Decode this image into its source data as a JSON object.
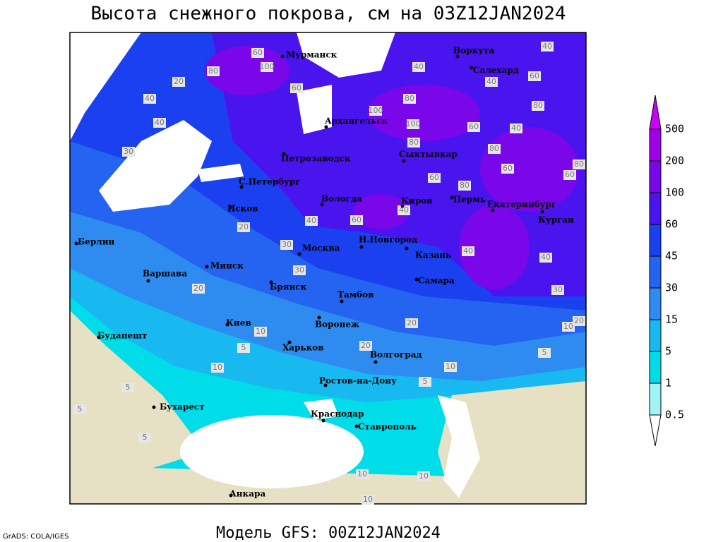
{
  "title": "Высота снежного покрова, см на 03Z12JAN2024",
  "footer": "Модель GFS: 00Z12JAN2024",
  "credit": "GrADS: COLA/IGES",
  "colorbar": {
    "levels": [
      0.5,
      1,
      5,
      15,
      30,
      45,
      60,
      100,
      200,
      500
    ],
    "colors": [
      "#ffffff",
      "#a0f4f8",
      "#00dce8",
      "#18b8f0",
      "#2e8cf0",
      "#2464f0",
      "#1a40f0",
      "#4a14ee",
      "#7a06ea",
      "#a000e6",
      "#cc00ff"
    ],
    "land_color": "#e6e0c4"
  },
  "cities": [
    "Мурманск",
    "Воркута",
    "Салехард",
    "Архангельск",
    "Сыктывкар",
    "Петрозаводск",
    "С.Петербург",
    "Вологда",
    "Киров",
    "Пермь",
    "Екатеринбург",
    "Курган",
    "Псков",
    "Н.Новгород",
    "Москва",
    "Казань",
    "Берлин",
    "Минск",
    "Варшава",
    "Брянск",
    "Тамбов",
    "Самара",
    "Киев",
    "Воронеж",
    "Харьков",
    "Будапешт",
    "Волгоград",
    "Ростов-на-Дону",
    "Бухарест",
    "Краснодар",
    "Ставрополь",
    "Анкара"
  ],
  "contour_labels": [
    60,
    100,
    80,
    20,
    40,
    40,
    30,
    60,
    100,
    80,
    100,
    40,
    40,
    60,
    40,
    80,
    60,
    40,
    80,
    60,
    80,
    60,
    80,
    60,
    80,
    40,
    60,
    40,
    20,
    30,
    40,
    40,
    30,
    30,
    20,
    20,
    10,
    5,
    20,
    10,
    10,
    5,
    20,
    10,
    5,
    5,
    5,
    10,
    10,
    5,
    10
  ]
}
